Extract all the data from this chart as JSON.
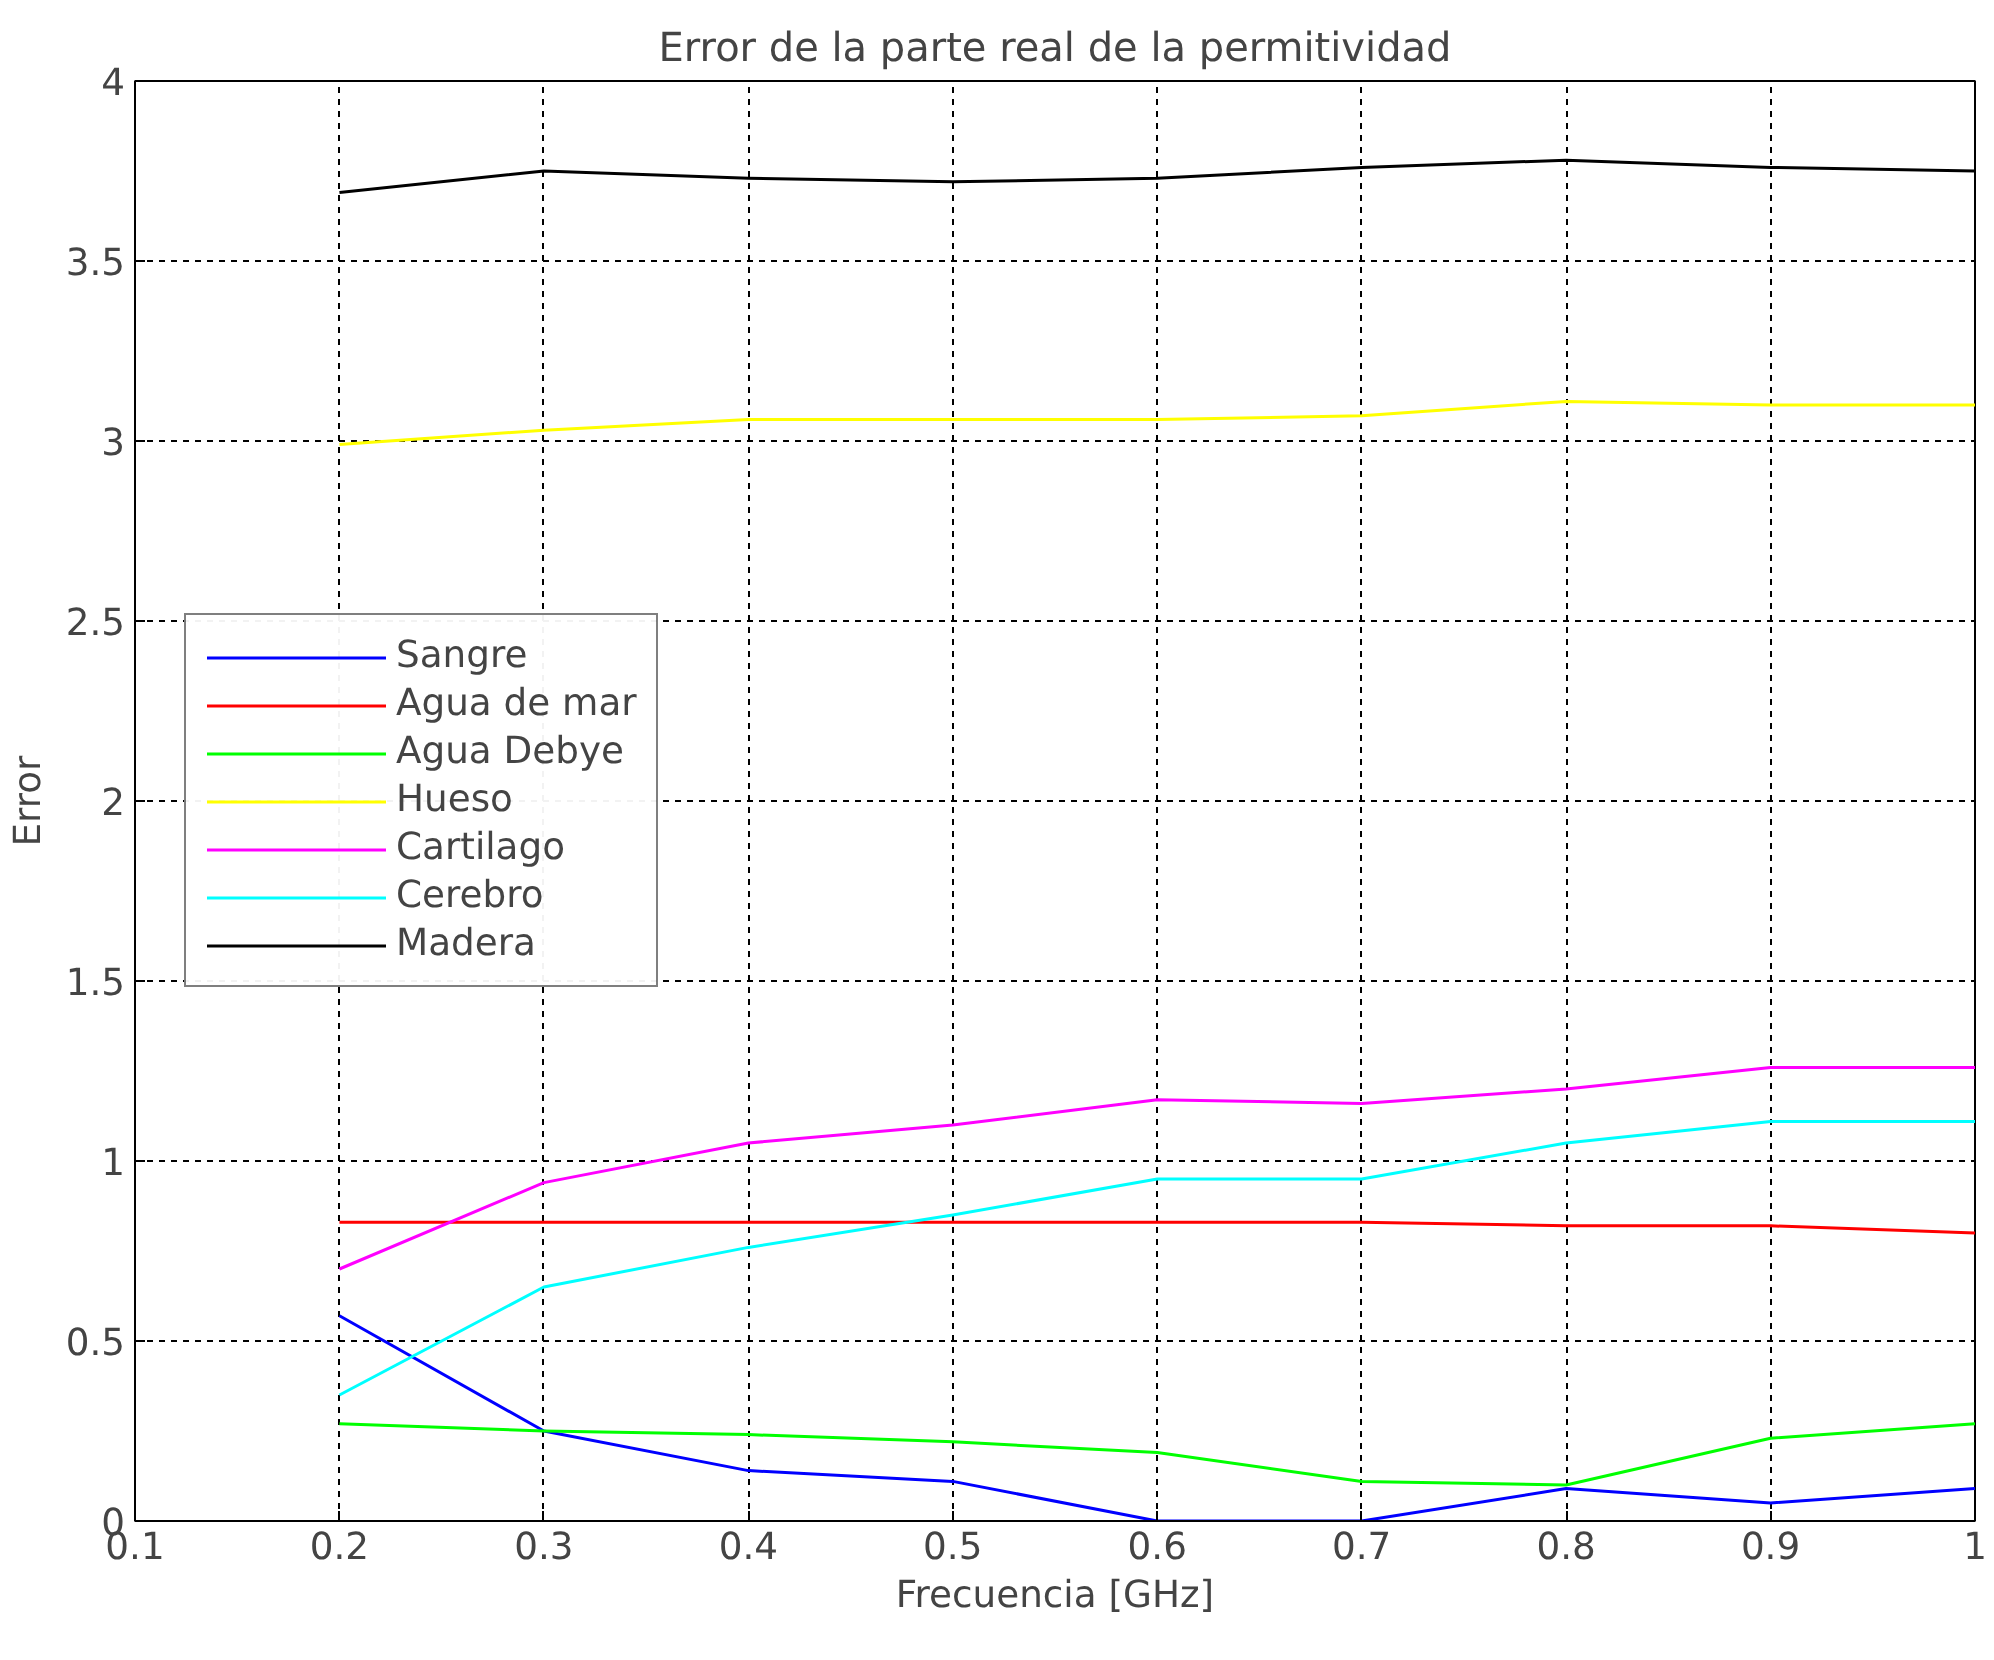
{
  "chart_data": {
    "type": "line",
    "title": "Error de la parte real de la permitividad",
    "xlabel": "Frecuencia [GHz]",
    "ylabel": "Error",
    "x": [
      0.2,
      0.3,
      0.4,
      0.5,
      0.6,
      0.7,
      0.8,
      0.9,
      1.0
    ],
    "series": [
      {
        "name": "Sangre",
        "color": "#0000ff",
        "values": [
          0.57,
          0.25,
          0.14,
          0.11,
          0.0,
          0.0,
          0.09,
          0.05,
          0.09
        ]
      },
      {
        "name": "Agua de mar",
        "color": "#ff0000",
        "values": [
          0.83,
          0.83,
          0.83,
          0.83,
          0.83,
          0.83,
          0.82,
          0.82,
          0.8
        ]
      },
      {
        "name": "Agua Debye",
        "color": "#00ff00",
        "values": [
          0.27,
          0.25,
          0.24,
          0.22,
          0.19,
          0.11,
          0.1,
          0.23,
          0.27
        ]
      },
      {
        "name": "Hueso",
        "color": "#ffff00",
        "values": [
          2.99,
          3.03,
          3.06,
          3.06,
          3.06,
          3.07,
          3.11,
          3.1,
          3.1
        ]
      },
      {
        "name": "Cartilago",
        "color": "#ff00ff",
        "values": [
          0.7,
          0.94,
          1.05,
          1.1,
          1.17,
          1.16,
          1.2,
          1.26,
          1.26
        ]
      },
      {
        "name": "Cerebro",
        "color": "#00ffff",
        "values": [
          0.35,
          0.65,
          0.76,
          0.85,
          0.95,
          0.95,
          1.05,
          1.11,
          1.11
        ]
      },
      {
        "name": "Madera",
        "color": "#000000",
        "values": [
          3.69,
          3.75,
          3.73,
          3.72,
          3.73,
          3.76,
          3.78,
          3.76,
          3.75
        ]
      }
    ],
    "xlim": [
      0.1,
      1.0
    ],
    "ylim": [
      0,
      4
    ],
    "xticks": [
      0.1,
      0.2,
      0.3,
      0.4,
      0.5,
      0.6,
      0.7,
      0.8,
      0.9,
      1
    ],
    "yticks": [
      0,
      0.5,
      1,
      1.5,
      2,
      2.5,
      3,
      3.5,
      4
    ],
    "grid": true,
    "legend": "left",
    "line_style": "solid",
    "marker": "none"
  }
}
